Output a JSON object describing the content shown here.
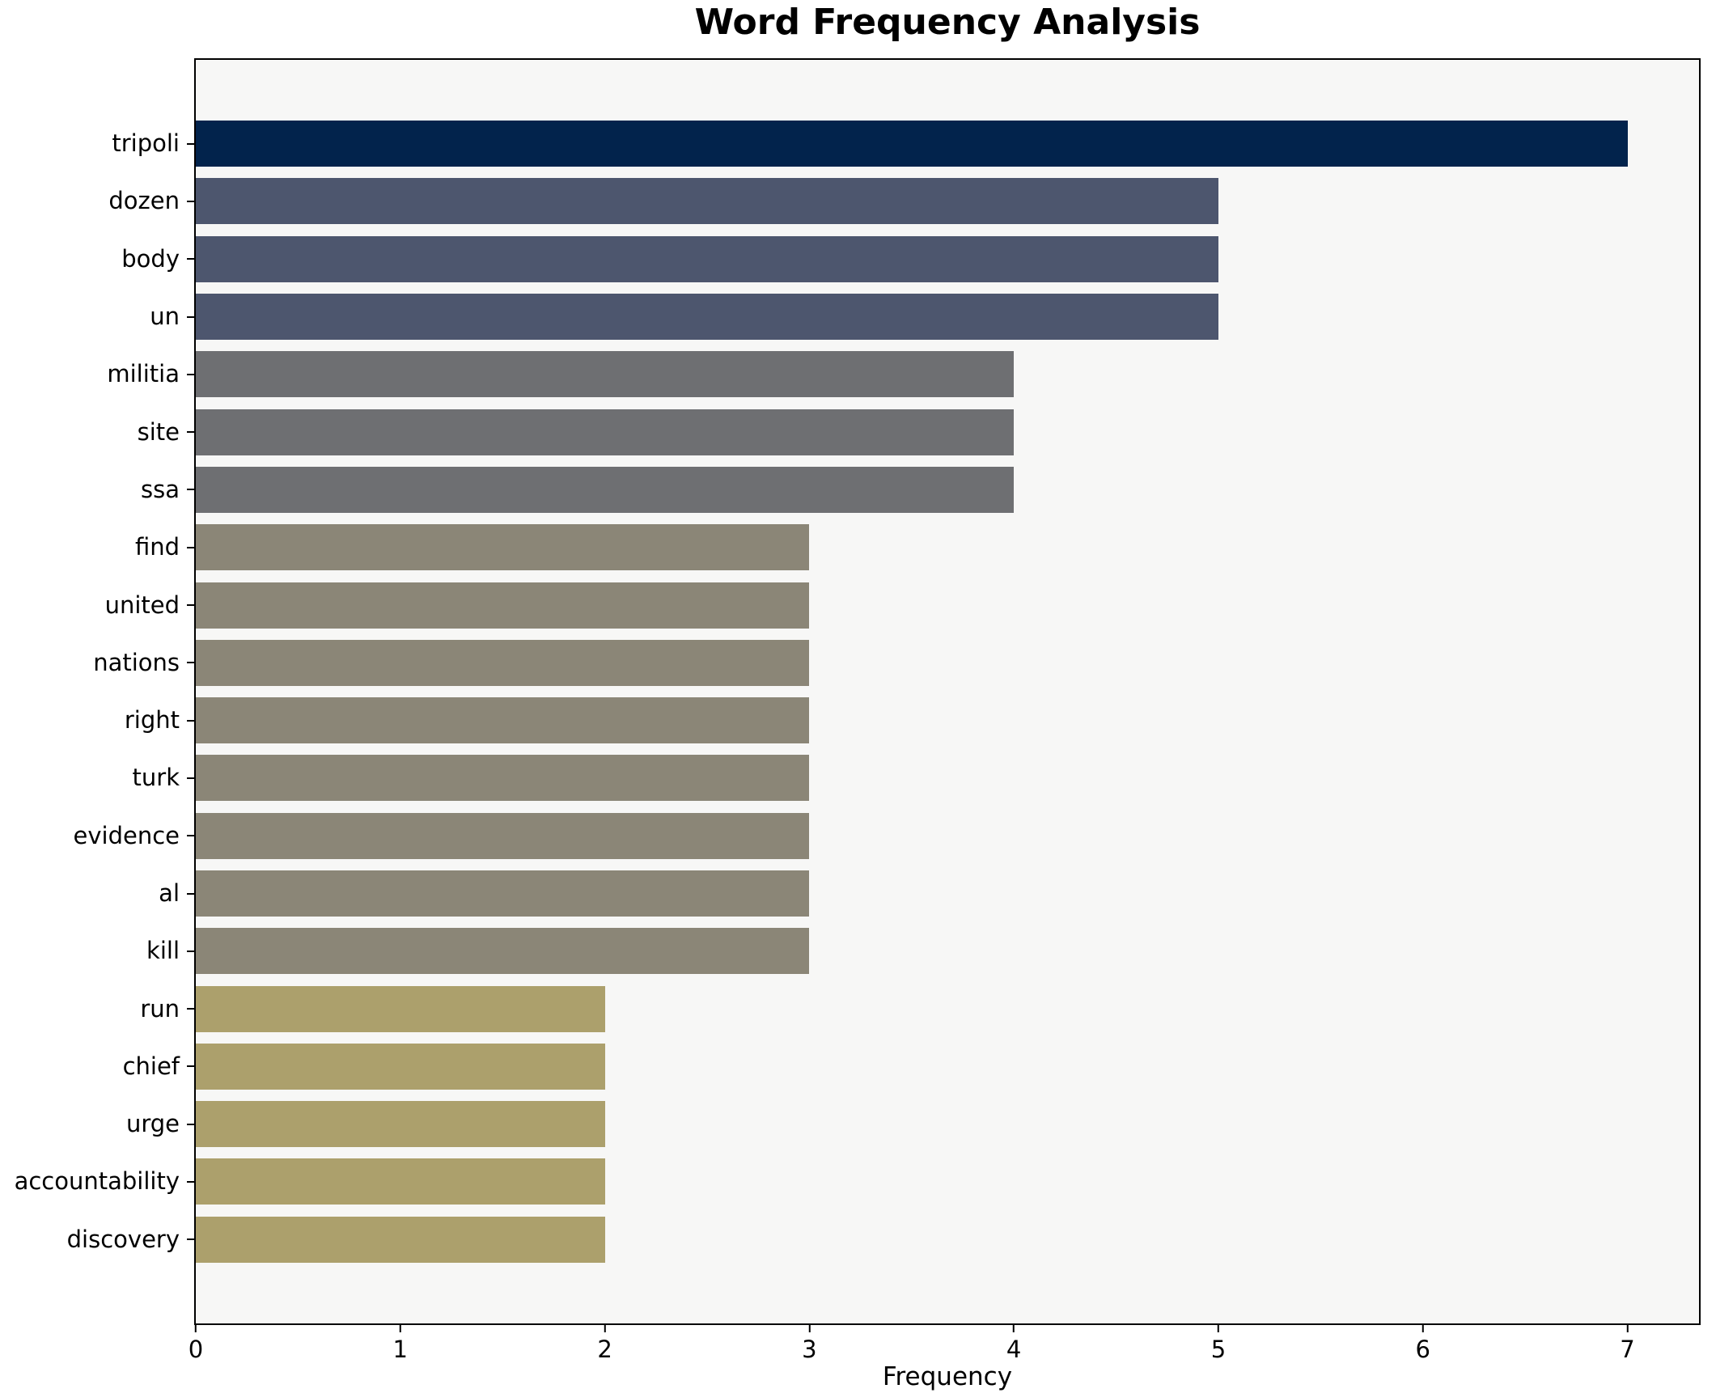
{
  "chart_data": {
    "type": "bar",
    "orientation": "horizontal",
    "title": "Word Frequency Analysis",
    "xlabel": "Frequency",
    "ylabel": "",
    "categories": [
      "tripoli",
      "dozen",
      "body",
      "un",
      "militia",
      "site",
      "ssa",
      "find",
      "united",
      "nations",
      "right",
      "turk",
      "evidence",
      "al",
      "kill",
      "run",
      "chief",
      "urge",
      "accountability",
      "discovery"
    ],
    "values": [
      7,
      5,
      5,
      5,
      4,
      4,
      4,
      3,
      3,
      3,
      3,
      3,
      3,
      3,
      3,
      2,
      2,
      2,
      2,
      2
    ],
    "bar_colors": [
      "#02234c",
      "#4d566e",
      "#4d566e",
      "#4d566e",
      "#6e6f72",
      "#6e6f72",
      "#6e6f72",
      "#8b8677",
      "#8b8677",
      "#8b8677",
      "#8b8677",
      "#8b8677",
      "#8b8677",
      "#8b8677",
      "#8b8677",
      "#aca06c",
      "#aca06c",
      "#aca06c",
      "#aca06c",
      "#aca06c"
    ],
    "xticks": [
      0,
      1,
      2,
      3,
      4,
      5,
      6,
      7
    ],
    "xlim": [
      0,
      7.35
    ],
    "grid": false,
    "legend": null,
    "plot_background": "#f7f7f6",
    "axis_color": "#000000"
  }
}
